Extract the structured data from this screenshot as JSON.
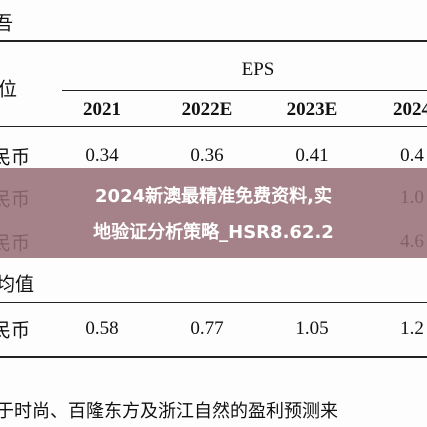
{
  "header": {
    "corner": "吾",
    "unit_label": "位",
    "group": "EPS"
  },
  "table": {
    "columns": [
      "2021",
      "2022E",
      "2023E",
      "2024"
    ],
    "rows": [
      {
        "label": "民币",
        "cells": [
          "0.34",
          "0.36",
          "0.41",
          "0.4"
        ]
      },
      {
        "label": "民币",
        "cells": [
          "",
          "",
          "",
          "1.0"
        ]
      },
      {
        "label": "民币",
        "cells": [
          "",
          "",
          "",
          "4.6"
        ]
      }
    ],
    "section": "均值",
    "section_rows": [
      {
        "label": "民币",
        "cells": [
          "0.58",
          "0.77",
          "1.05",
          "1.2"
        ]
      }
    ]
  },
  "footer": {
    "text": "于时尚、百隆东方及浙江自然的盈利预测来"
  },
  "banner": {
    "lines": [
      "2024新澳最精准免费资料,实",
      "地验证分析策略_HSR8.62.2"
    ]
  }
}
